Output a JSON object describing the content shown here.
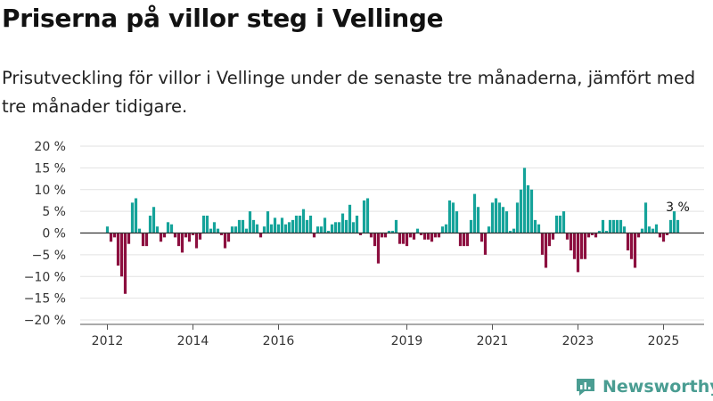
{
  "title": "Priserna på villor steg i Vellinge",
  "subtitle": "Prisutveckling för villor i Vellinge under de senaste tre månaderna, jämfört med tre månader tidigare.",
  "brand": "Newsworthy",
  "colors": {
    "positive": "#15a39a",
    "negative": "#8c0f3f",
    "grid": "#e2e2e2",
    "zero": "#333333",
    "brand": "#4a9d92"
  },
  "chart_data": {
    "type": "bar",
    "title": "Priserna på villor steg i Vellinge",
    "xlabel": "",
    "ylabel": "",
    "ylim": [
      -20,
      20
    ],
    "yticks": [
      20,
      15,
      10,
      5,
      0,
      -5,
      -10,
      -15,
      -20
    ],
    "ytick_labels": [
      "20 %",
      "15 %",
      "10 %",
      "5 %",
      "0 %",
      "−5 %",
      "−10 %",
      "−15 %",
      "−20 %"
    ],
    "xticks": [
      {
        "year": 2012,
        "label": "2012"
      },
      {
        "year": 2014,
        "label": "2014"
      },
      {
        "year": 2016,
        "label": "2016"
      },
      {
        "year": 2019,
        "label": "2019"
      },
      {
        "year": 2021,
        "label": "2021"
      },
      {
        "year": 2023,
        "label": "2023"
      },
      {
        "year": 2025,
        "label": "2025"
      }
    ],
    "grid": true,
    "start": "2012-01",
    "frequency": "monthly",
    "values": [
      1.5,
      -2,
      -1,
      -7.5,
      -10,
      -14,
      -2.5,
      7,
      8,
      1,
      -3,
      -3,
      4,
      6,
      1.5,
      -2,
      -1,
      2.5,
      2,
      -1,
      -3,
      -4.5,
      -1,
      -2,
      -0.5,
      -3.5,
      -1.5,
      4,
      4,
      1,
      2.5,
      1,
      -0.5,
      -3.5,
      -2,
      1.5,
      1.5,
      3,
      3,
      1,
      5,
      3,
      2,
      -1,
      1.5,
      5,
      2,
      3.5,
      2,
      3.5,
      2,
      2.5,
      3,
      4,
      4,
      5.5,
      3,
      4,
      -1,
      1.5,
      1.5,
      3.5,
      0.5,
      2,
      2.5,
      2.5,
      4.5,
      3,
      6.5,
      2.5,
      4,
      -0.5,
      7.5,
      8,
      -1,
      -3,
      -7,
      -1,
      -1,
      0.5,
      0.5,
      3,
      -2.5,
      -2.5,
      -3,
      -1,
      -1.5,
      1,
      -0.5,
      -1.5,
      -1.5,
      -2,
      -1,
      -1,
      1.5,
      2,
      7.5,
      7,
      5,
      -3,
      -3,
      -3,
      3,
      9,
      6,
      -2,
      -5,
      1.5,
      7,
      8,
      7,
      6,
      5,
      0.5,
      1,
      7,
      10,
      15,
      11,
      10,
      3,
      2,
      -5,
      -8,
      -3,
      -1.5,
      4,
      4,
      5,
      -1.5,
      -4,
      -6,
      -9,
      -6,
      -6,
      -1,
      -0.5,
      -1,
      0.5,
      3,
      0.5,
      3,
      3,
      3,
      3,
      1.5,
      -4,
      -6,
      -8,
      -1,
      1,
      7,
      1.5,
      1,
      2,
      -1,
      -2,
      -0.5,
      3,
      5,
      3
    ],
    "annotations": [
      {
        "index": 160,
        "label": "3 %"
      }
    ]
  }
}
